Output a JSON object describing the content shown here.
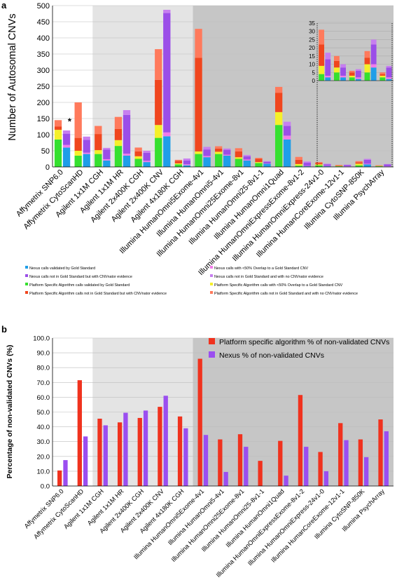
{
  "chart_data": [
    {
      "type": "bar",
      "panel_label": "a",
      "stacked": true,
      "ylabel": "Number of Autosomal CNVs",
      "ylim": [
        0,
        500
      ],
      "yticks": [
        0,
        50,
        100,
        150,
        200,
        250,
        300,
        350,
        400,
        450,
        500
      ],
      "annotation": "*",
      "background_bands": [
        "white",
        "light-gray",
        "dark-gray"
      ],
      "categories": [
        "Affymetrix SNP6.0",
        "Affymetrix CytoScanHD",
        "Agilent 1x1M CGH",
        "Agilent 1x1M HR",
        "Agilent 2x400K CGH",
        "Agilent 2x400K CNV",
        "Agilent 4x180K CGH",
        "Illumina HumanOmni5Exome-4v1",
        "Illumina HumanOmni5-4v1",
        "Illumina HumanOmni25Exome-8v1",
        "Illumina HumanOmni25-8v1-1",
        "Illumina HumanOmni1Quad",
        "Illumina HumanOmniExpressExome-8v1-2",
        "Illumina HumanOmniExpress-24v1-0",
        "Illumina HumanCoreExome-12v1-1",
        "Illumina CytoSNP-850K",
        "Illumina PsychArray"
      ],
      "bars_per_category": [
        "Platform Specific Algorithm",
        "Nexus"
      ],
      "series": [
        {
          "name": "Nexus calls validated by Gold Standard",
          "color": "#1f9ee8",
          "platform": [
            0,
            0,
            0,
            0,
            0,
            0,
            0,
            0,
            0,
            0,
            0,
            0,
            0,
            0,
            0,
            0,
            0
          ],
          "nexus": [
            60,
            40,
            20,
            35,
            15,
            95,
            5,
            30,
            35,
            20,
            10,
            85,
            2,
            2,
            1,
            8,
            1
          ]
        },
        {
          "name": "Nexus calls with <50% Overlap to a Gold Standard CNV",
          "color": "#f27bea",
          "platform": [
            0,
            0,
            0,
            0,
            0,
            0,
            0,
            0,
            0,
            0,
            0,
            0,
            0,
            0,
            0,
            0,
            0
          ],
          "nexus": [
            8,
            4,
            4,
            6,
            4,
            12,
            3,
            4,
            3,
            3,
            1,
            12,
            1,
            1,
            1,
            2,
            1
          ]
        },
        {
          "name": "Nexus calls not in Gold Standard but with CNVnator evidence",
          "color": "#9b4ee8",
          "platform": [
            0,
            0,
            0,
            0,
            0,
            0,
            0,
            0,
            0,
            0,
            0,
            0,
            0,
            0,
            0,
            0,
            0
          ],
          "nexus": [
            35,
            40,
            30,
            120,
            25,
            370,
            12,
            20,
            15,
            10,
            5,
            30,
            10,
            5,
            4,
            12,
            6
          ]
        },
        {
          "name": "Nexus calls not in Gold Standard and with no CNVnator evidence",
          "color": "#c77ff0",
          "platform": [
            0,
            0,
            0,
            0,
            0,
            0,
            0,
            0,
            0,
            0,
            0,
            0,
            0,
            0,
            0,
            0,
            0
          ],
          "nexus": [
            10,
            10,
            5,
            15,
            6,
            10,
            6,
            8,
            4,
            4,
            2,
            13,
            4,
            2,
            1,
            3,
            1
          ]
        },
        {
          "name": "Platform Specific Algorithm calls validated by Gold Standard",
          "color": "#35e02f",
          "platform": [
            85,
            35,
            40,
            65,
            25,
            90,
            8,
            40,
            40,
            25,
            12,
            130,
            4,
            5,
            2,
            5,
            2
          ],
          "nexus": [
            0,
            0,
            0,
            0,
            0,
            0,
            0,
            0,
            0,
            0,
            0,
            0,
            0,
            0,
            0,
            0,
            0
          ]
        },
        {
          "name": "Platform Specific Algorithm calls with <50% Overlap to a Gold Standard CNV",
          "color": "#f5f02a",
          "platform": [
            30,
            15,
            12,
            18,
            8,
            40,
            3,
            8,
            7,
            5,
            3,
            40,
            5,
            3,
            1,
            5,
            1
          ],
          "nexus": [
            0,
            0,
            0,
            0,
            0,
            0,
            0,
            0,
            0,
            0,
            0,
            0,
            0,
            0,
            0,
            0,
            0
          ]
        },
        {
          "name": "Platform Specific Algorithm calls not in Gold Standard but with CNVnator evidence",
          "color": "#f0461e",
          "platform": [
            10,
            40,
            50,
            35,
            15,
            140,
            8,
            290,
            10,
            18,
            10,
            60,
            13,
            4,
            2,
            4,
            1
          ],
          "nexus": [
            0,
            0,
            0,
            0,
            0,
            0,
            0,
            0,
            0,
            0,
            0,
            0,
            0,
            0,
            0,
            0,
            0
          ]
        },
        {
          "name": "Platform Specific Algorithm calls not in Gold Standard and with no CNVnator evidence",
          "color": "#ff7a5c",
          "platform": [
            20,
            110,
            25,
            37,
            12,
            95,
            3,
            90,
            7,
            10,
            3,
            18,
            9,
            3,
            1,
            4,
            1
          ],
          "nexus": [
            0,
            0,
            0,
            0,
            0,
            0,
            0,
            0,
            0,
            0,
            0,
            0,
            0,
            0,
            0,
            0,
            0
          ]
        }
      ],
      "inset": {
        "ylim": [
          0,
          35
        ],
        "yticks": [
          0,
          5,
          10,
          15,
          20,
          25,
          30,
          35
        ],
        "categories": [
          "Illumina HumanOmniExpressExome-8v1-2",
          "Illumina HumanOmniExpress-24v1-0",
          "Illumina HumanCoreExome-12v1-1",
          "Illumina CytoSNP-850K",
          "Illumina PsychArray"
        ]
      },
      "legend": {
        "placement": "bottom",
        "items": [
          {
            "label": "Nexus calls validated by Gold Standard",
            "color": "#1f9ee8"
          },
          {
            "label": "Nexus calls with <50% Overlap to a Gold Standard CNV",
            "color": "#f27bea"
          },
          {
            "label": "Nexus calls not in Gold Standard but with CNVnator evidence",
            "color": "#9b4ee8"
          },
          {
            "label": "Nexus calls not in Gold Standard and with no CNVnator evidence",
            "color": "#c77ff0"
          },
          {
            "label": "Platform Specific Algorithm calls validated by Gold Standard",
            "color": "#35e02f"
          },
          {
            "label": "Platform Specific Algorithm calls with <50% Overlap to a Gold Standard CNV",
            "color": "#f5f02a"
          },
          {
            "label": "Platform Specific Algorithm calls not in Gold Standard but with CNVnator evidence",
            "color": "#f0461e"
          },
          {
            "label": "Platform Specific Algorithm calls not in Gold Standard and with no CNVnator evidence",
            "color": "#ff7a5c"
          }
        ]
      }
    },
    {
      "type": "bar",
      "panel_label": "b",
      "ylabel": "Percentage of non-validated CNVs (%)",
      "ylim": [
        0,
        100
      ],
      "yticks": [
        "0.0",
        "10.0",
        "20.0",
        "30.0",
        "40.0",
        "50.0",
        "60.0",
        "70.0",
        "80.0",
        "90.0",
        "100.0"
      ],
      "background_bands": [
        "white",
        "light-gray",
        "dark-gray"
      ],
      "categories": [
        "Affymetrix SNP6.0",
        "Affymetrix CytoScanHD",
        "Agilent 1x1M CGH",
        "Agilent 1x1M HR",
        "Agilent 2x400K CGH",
        "Agilent 2x400K CNV",
        "Agilent 4x180K CGH",
        "Illumina HumanOmni5Exome-4v1",
        "Illumina HumanOmni5-4v1",
        "Illumina HumanOmni25Exome-8v1",
        "Illumina HumanOmni25-8v1-1",
        "Illumina HumanOmni1Quad",
        "Illumina HumanOmniExpressExome-8v1-2",
        "Illumina HumanOmniExpress-24v1-0",
        "Illumina HumanCoreExome-12v1-1",
        "Illumina CytoSNP-850K",
        "Illumina PsychArray"
      ],
      "series": [
        {
          "name": "Platform specific algorithm % of non-validated CNVs",
          "color": "#f0321e",
          "values": [
            10.5,
            71.5,
            45.5,
            43.0,
            46.0,
            53.5,
            47.0,
            86.0,
            31.5,
            35.0,
            17.0,
            30.5,
            61.5,
            23.0,
            42.5,
            31.5,
            45.0
          ]
        },
        {
          "name": "Nexus % of non-validated CNVs",
          "color": "#9b4ef0",
          "values": [
            17.5,
            33.5,
            41.0,
            49.5,
            51.0,
            61.0,
            39.0,
            34.5,
            9.5,
            26.5,
            0,
            7.0,
            26.5,
            10.0,
            31.0,
            19.5,
            37.0
          ]
        }
      ],
      "legend": {
        "placement": "top-right"
      }
    }
  ]
}
